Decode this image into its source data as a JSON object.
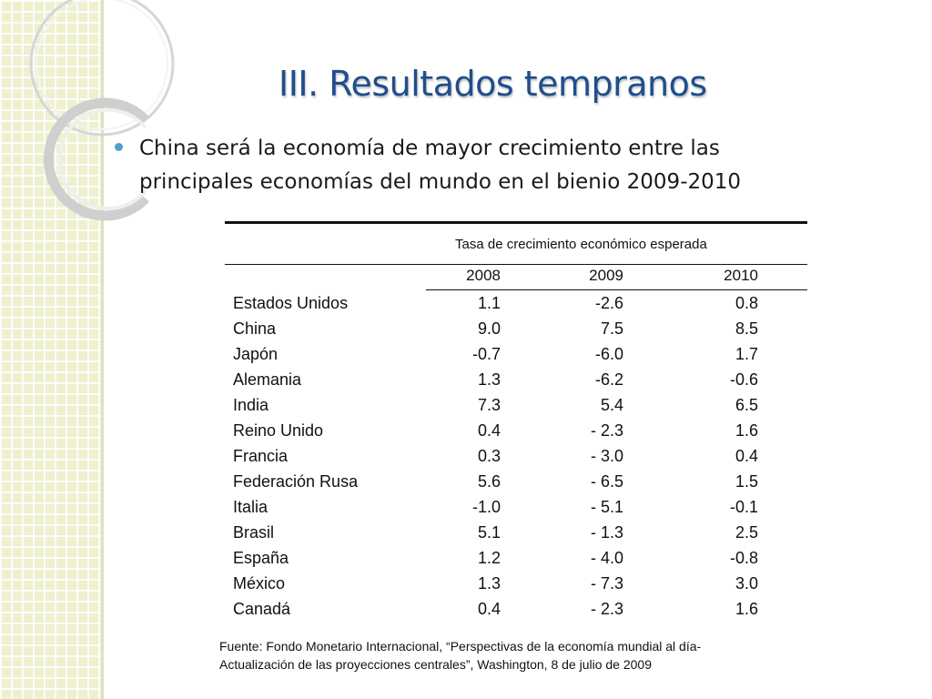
{
  "slide": {
    "title": "III. Resultados tempranos",
    "bullet": "China será la economía de mayor crecimiento entre las principales economías del mundo en el bienio 2009-2010",
    "icons": [
      "bullet-dot-icon",
      "decorative-rings-icon"
    ],
    "colors": {
      "title": "#1f4e8c",
      "bullet": "#4f9fcf",
      "left_panel": "#eef0cf"
    }
  },
  "table": {
    "caption": "Tasa de crecimiento económico esperada",
    "years": [
      "2008",
      "2009",
      "2010"
    ],
    "rows": [
      {
        "country": "Estados Unidos",
        "y2008": "1.1",
        "y2009": "-2.6",
        "y2010": "0.8"
      },
      {
        "country": "China",
        "y2008": "9.0",
        "y2009": "7.5",
        "y2010": "8.5"
      },
      {
        "country": "Japón",
        "y2008": "-0.7",
        "y2009": "-6.0",
        "y2010": "1.7"
      },
      {
        "country": "Alemania",
        "y2008": "1.3",
        "y2009": "-6.2",
        "y2010": "-0.6"
      },
      {
        "country": "India",
        "y2008": "7.3",
        "y2009": "5.4",
        "y2010": "6.5"
      },
      {
        "country": "Reino Unido",
        "y2008": "0.4",
        "y2009": "- 2.3",
        "y2010": "1.6"
      },
      {
        "country": "Francia",
        "y2008": "0.3",
        "y2009": "- 3.0",
        "y2010": "0.4"
      },
      {
        "country": "Federación Rusa",
        "y2008": "5.6",
        "y2009": "- 6.5",
        "y2010": "1.5"
      },
      {
        "country": "Italia",
        "y2008": "-1.0",
        "y2009": "- 5.1",
        "y2010": "-0.1"
      },
      {
        "country": "Brasil",
        "y2008": "5.1",
        "y2009": "- 1.3",
        "y2010": "2.5"
      },
      {
        "country": "España",
        "y2008": "1.2",
        "y2009": "- 4.0",
        "y2010": "-0.8"
      },
      {
        "country": "México",
        "y2008": "1.3",
        "y2009": "- 7.3",
        "y2010": "3.0"
      },
      {
        "country": "Canadá",
        "y2008": "0.4",
        "y2009": "- 2.3",
        "y2010": "1.6"
      }
    ]
  },
  "source": {
    "line1": "Fuente:  Fondo Monetario Internacional, “Perspectivas de la economía mundial al día-",
    "line2": "Actualización de las proyecciones centrales”, Washington, 8 de julio de 2009"
  }
}
